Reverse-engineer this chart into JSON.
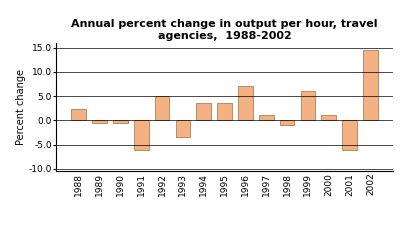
{
  "years": [
    "1988",
    "1989",
    "1990",
    "1991",
    "1992",
    "1993",
    "1994",
    "1995",
    "1996",
    "1997",
    "1998",
    "1999",
    "2000",
    "2001",
    "2002"
  ],
  "values": [
    2.3,
    -0.5,
    -0.5,
    -6.0,
    5.0,
    -3.5,
    3.5,
    3.5,
    7.0,
    1.2,
    -1.0,
    6.0,
    1.2,
    -6.0,
    14.5
  ],
  "bar_color": "#F4B183",
  "bar_edge_color": "#A07040",
  "title_line1": "Annual percent change in output per hour, travel",
  "title_line2": "agencies,  1988-2002",
  "ylabel": "Percent change",
  "ylim": [
    -10.5,
    16.0
  ],
  "yticks": [
    -10.0,
    -5.0,
    0.0,
    5.0,
    10.0,
    15.0
  ],
  "ytick_labels": [
    "-10.0",
    "-5.0",
    "0.0",
    "5.0",
    "10.0",
    "15.0"
  ],
  "background_color": "#FFFFFF",
  "grid_color": "#000000",
  "title_fontsize": 8,
  "ylabel_fontsize": 7,
  "tick_fontsize": 6.5
}
